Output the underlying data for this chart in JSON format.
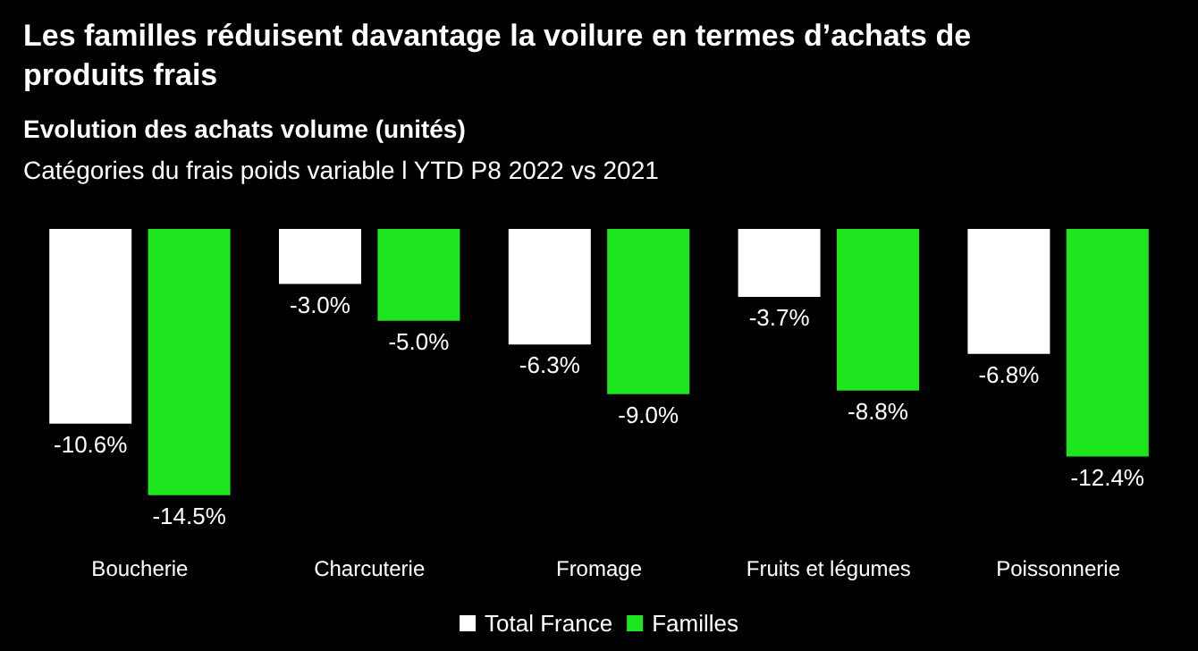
{
  "chart_data": {
    "type": "bar",
    "title": "Les familles réduisent davantage la voilure en termes d’achats de produits frais",
    "subtitle": "Evolution des achats volume (unités)",
    "annotations": [
      "Catégories du frais poids variable l YTD P8 2022 vs 2021"
    ],
    "categories": [
      "Boucherie",
      "Charcuterie",
      "Fromage",
      "Fruits et légumes",
      "Poissonnerie"
    ],
    "series": [
      {
        "name": "Total France",
        "color": "#ffffff",
        "values": [
          -10.6,
          -3.0,
          -6.3,
          -3.7,
          -6.8
        ],
        "value_labels": [
          "-10.6%",
          "-3.0%",
          "-6.3%",
          "-3.7%",
          "-6.8%"
        ]
      },
      {
        "name": "Familles",
        "color": "#1ee61e",
        "values": [
          -14.5,
          -5.0,
          -9.0,
          -8.8,
          -12.4
        ],
        "value_labels": [
          "-14.5%",
          "-5.0%",
          "-9.0%",
          "-8.8%",
          "-12.4%"
        ]
      }
    ],
    "legend": "bottom"
  }
}
